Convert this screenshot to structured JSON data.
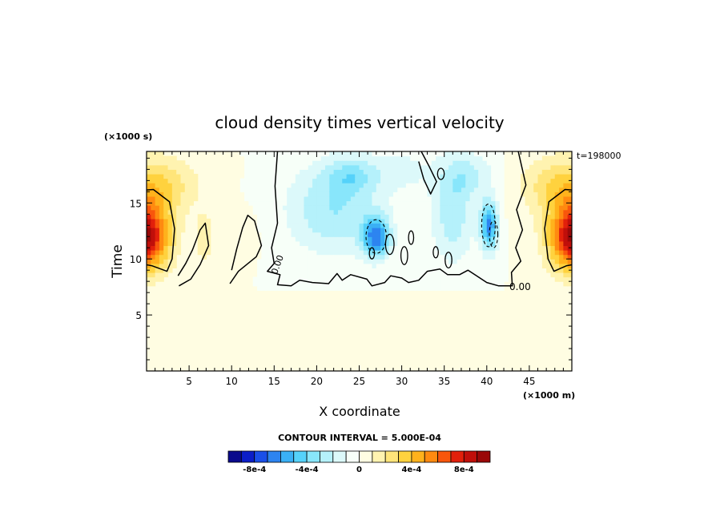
{
  "chart_data": {
    "type": "heatmap",
    "title": "cloud density times vertical velocity",
    "xlabel": "X coordinate",
    "ylabel": "Time",
    "x_units": "(×1000 m)",
    "y_units": "(×1000 s)",
    "time_label": "t=198000",
    "xlim": [
      0,
      50
    ],
    "ylim": [
      0,
      19.6
    ],
    "x_ticks": [
      5,
      10,
      15,
      20,
      25,
      30,
      35,
      40,
      45
    ],
    "y_ticks": [
      5,
      10,
      15
    ],
    "contour_interval_label": "CONTOUR INTERVAL = 5.000E-04",
    "zero_contour_labels": [
      "0.00",
      "0.00"
    ],
    "colorbar": {
      "colors": [
        "#0a0a8c",
        "#0b1ec8",
        "#1a4fe8",
        "#2d84f0",
        "#3ab0f5",
        "#55d2fa",
        "#88e6fb",
        "#b5f1fb",
        "#dcf9fa",
        "#f7fff8",
        "#fffde2",
        "#fff3b0",
        "#ffe57a",
        "#ffd23e",
        "#ffb21c",
        "#ff8a10",
        "#f8560c",
        "#e2200b",
        "#c00f0a",
        "#9a0808"
      ],
      "tick_labels": [
        "-8e-4",
        "-4e-4",
        "0",
        "4e-4",
        "8e-4"
      ],
      "tick_values": [
        -0.0008,
        -0.0004,
        0,
        0.0004,
        0.0008
      ],
      "range": [
        -0.001,
        0.001
      ]
    },
    "features": [
      {
        "kind": "positive",
        "x_range": [
          0,
          3.5
        ],
        "t_range": [
          8.7,
          19.6
        ],
        "peak": 0.00095,
        "peak_at": [
          0.5,
          11.8
        ]
      },
      {
        "kind": "positive",
        "x_range": [
          46,
          50
        ],
        "t_range": [
          8.7,
          19.6
        ],
        "peak": 0.00095,
        "peak_at": [
          49.5,
          11.8
        ]
      },
      {
        "kind": "positive",
        "x_range": [
          5.5,
          7.5
        ],
        "t_range": [
          9.5,
          14.5
        ],
        "peak": 0.0002
      },
      {
        "kind": "negative",
        "x_range": [
          15,
          31
        ],
        "t_range": [
          7.5,
          19.6
        ],
        "peak": -0.0007,
        "peak_at": [
          27,
          12
        ]
      },
      {
        "kind": "negative",
        "x_range": [
          33,
          44
        ],
        "t_range": [
          7.5,
          19.6
        ],
        "peak": -0.0006,
        "peak_at": [
          40,
          13
        ]
      }
    ]
  }
}
